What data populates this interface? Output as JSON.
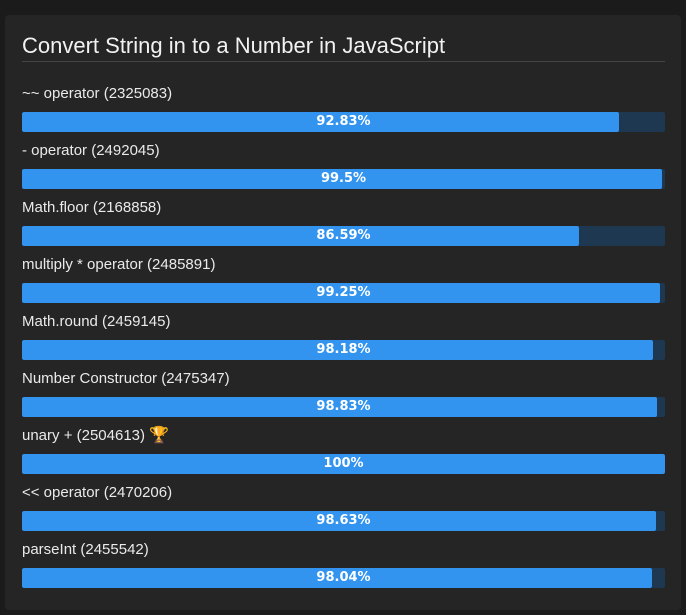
{
  "page": {
    "title": "Convert String in to a Number in JavaScript"
  },
  "colors": {
    "background": "#1b1b1c",
    "panel": "#252526",
    "bar_fill": "#3394f0",
    "bar_track": "#1d3850",
    "text": "#eaeaea",
    "trophy": "#f0b429"
  },
  "results": [
    {
      "label": "~~ operator (2325083)",
      "percent_text": "92.83%",
      "percent": 92.83,
      "winner": false
    },
    {
      "label": "- operator (2492045)",
      "percent_text": "99.5%",
      "percent": 99.5,
      "winner": false
    },
    {
      "label": "Math.floor (2168858)",
      "percent_text": "86.59%",
      "percent": 86.59,
      "winner": false
    },
    {
      "label": "multiply * operator (2485891)",
      "percent_text": "99.25%",
      "percent": 99.25,
      "winner": false
    },
    {
      "label": "Math.round (2459145)",
      "percent_text": "98.18%",
      "percent": 98.18,
      "winner": false
    },
    {
      "label": "Number Constructor (2475347)",
      "percent_text": "98.83%",
      "percent": 98.83,
      "winner": false
    },
    {
      "label": "unary + (2504613)",
      "percent_text": "100%",
      "percent": 100,
      "winner": true,
      "winner_icon": "trophy-icon"
    },
    {
      "label": "<< operator (2470206)",
      "percent_text": "98.63%",
      "percent": 98.63,
      "winner": false
    },
    {
      "label": "parseInt (2455542)",
      "percent_text": "98.04%",
      "percent": 98.04,
      "winner": false
    }
  ]
}
